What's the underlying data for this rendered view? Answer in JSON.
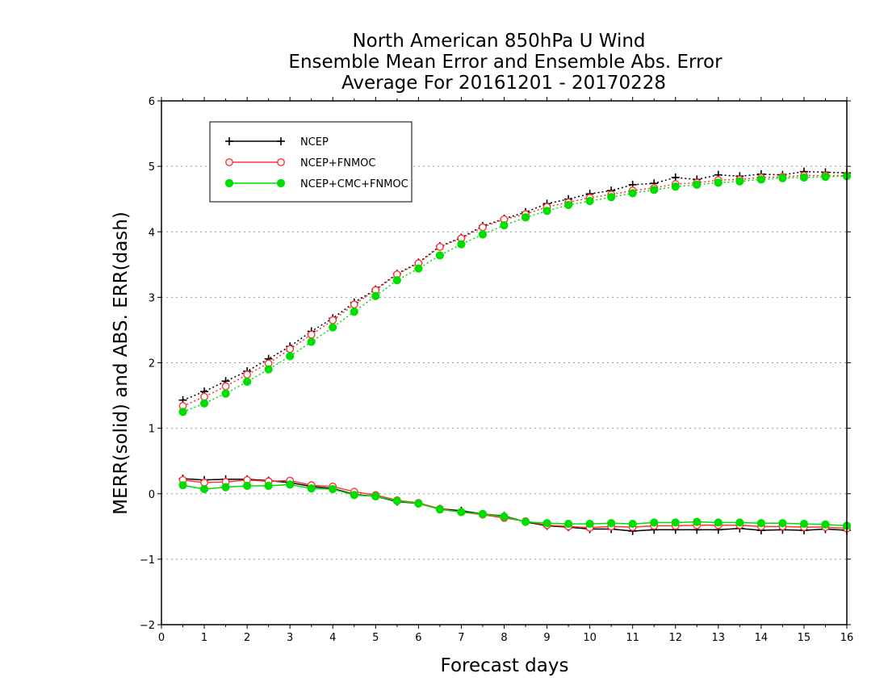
{
  "chart_data": {
    "type": "line",
    "title": [
      "North American 850hPa U Wind",
      "Ensemble Mean Error and Ensemble Abs. Error",
      "Average For 20161201 - 20170228"
    ],
    "xlabel": "Forecast days",
    "ylabel": "MERR(solid) and ABS. ERR(dash)",
    "xlim": [
      0,
      16
    ],
    "ylim": [
      -2,
      6
    ],
    "xticks": [
      "0",
      "1",
      "2",
      "3",
      "4",
      "5",
      "6",
      "7",
      "8",
      "9",
      "10",
      "11",
      "12",
      "13",
      "14",
      "15",
      "16"
    ],
    "yticks": [
      "-2",
      "-1",
      "0",
      "1",
      "2",
      "3",
      "4",
      "5",
      "6"
    ],
    "grid": "horizontal dotted",
    "legend_position": "top-left",
    "x": [
      0.5,
      1,
      1.5,
      2,
      2.5,
      3,
      3.5,
      4,
      4.5,
      5,
      5.5,
      6,
      6.5,
      7,
      7.5,
      8,
      8.5,
      9,
      9.5,
      10,
      10.5,
      11,
      11.5,
      12,
      12.5,
      13,
      13.5,
      14,
      14.5,
      15,
      15.5,
      16
    ],
    "series": [
      {
        "name": "NCEP",
        "color": "#000000",
        "marker": "plus",
        "merr": [
          0.23,
          0.21,
          0.22,
          0.22,
          0.2,
          0.17,
          0.11,
          0.08,
          -0.01,
          -0.04,
          -0.12,
          -0.15,
          -0.23,
          -0.26,
          -0.31,
          -0.34,
          -0.43,
          -0.49,
          -0.51,
          -0.54,
          -0.54,
          -0.57,
          -0.55,
          -0.55,
          -0.55,
          -0.55,
          -0.53,
          -0.56,
          -0.55,
          -0.56,
          -0.54,
          -0.56
        ],
        "abs_err": [
          1.43,
          1.56,
          1.72,
          1.87,
          2.06,
          2.25,
          2.48,
          2.68,
          2.92,
          3.12,
          3.36,
          3.53,
          3.78,
          3.91,
          4.09,
          4.2,
          4.3,
          4.43,
          4.5,
          4.58,
          4.63,
          4.72,
          4.74,
          4.83,
          4.8,
          4.87,
          4.85,
          4.88,
          4.87,
          4.92,
          4.91,
          4.9
        ]
      },
      {
        "name": "NCEP+FNMOC",
        "color": "#ff3333",
        "marker": "open-circle",
        "merr": [
          0.21,
          0.17,
          0.18,
          0.21,
          0.19,
          0.2,
          0.13,
          0.11,
          0.03,
          -0.02,
          -0.1,
          -0.14,
          -0.23,
          -0.28,
          -0.32,
          -0.37,
          -0.42,
          -0.48,
          -0.5,
          -0.52,
          -0.5,
          -0.51,
          -0.49,
          -0.49,
          -0.48,
          -0.48,
          -0.48,
          -0.5,
          -0.5,
          -0.51,
          -0.51,
          -0.53
        ],
        "abs_err": [
          1.34,
          1.48,
          1.64,
          1.82,
          1.99,
          2.21,
          2.43,
          2.65,
          2.89,
          3.11,
          3.35,
          3.52,
          3.77,
          3.9,
          4.07,
          4.19,
          4.27,
          4.38,
          4.45,
          4.52,
          4.57,
          4.63,
          4.67,
          4.73,
          4.75,
          4.79,
          4.8,
          4.83,
          4.84,
          4.86,
          4.86,
          4.86
        ]
      },
      {
        "name": "NCEP+CMC+FNMOC",
        "color": "#00dd00",
        "marker": "filled-circle",
        "merr": [
          0.13,
          0.07,
          0.1,
          0.12,
          0.12,
          0.14,
          0.08,
          0.07,
          -0.02,
          -0.04,
          -0.11,
          -0.15,
          -0.24,
          -0.28,
          -0.31,
          -0.35,
          -0.43,
          -0.45,
          -0.46,
          -0.46,
          -0.45,
          -0.46,
          -0.44,
          -0.44,
          -0.43,
          -0.44,
          -0.44,
          -0.45,
          -0.45,
          -0.46,
          -0.47,
          -0.49
        ],
        "abs_err": [
          1.25,
          1.38,
          1.53,
          1.71,
          1.9,
          2.1,
          2.32,
          2.54,
          2.78,
          3.02,
          3.26,
          3.44,
          3.64,
          3.81,
          3.96,
          4.1,
          4.22,
          4.32,
          4.41,
          4.47,
          4.53,
          4.59,
          4.64,
          4.69,
          4.72,
          4.75,
          4.77,
          4.8,
          4.82,
          4.83,
          4.84,
          4.85
        ]
      }
    ]
  }
}
